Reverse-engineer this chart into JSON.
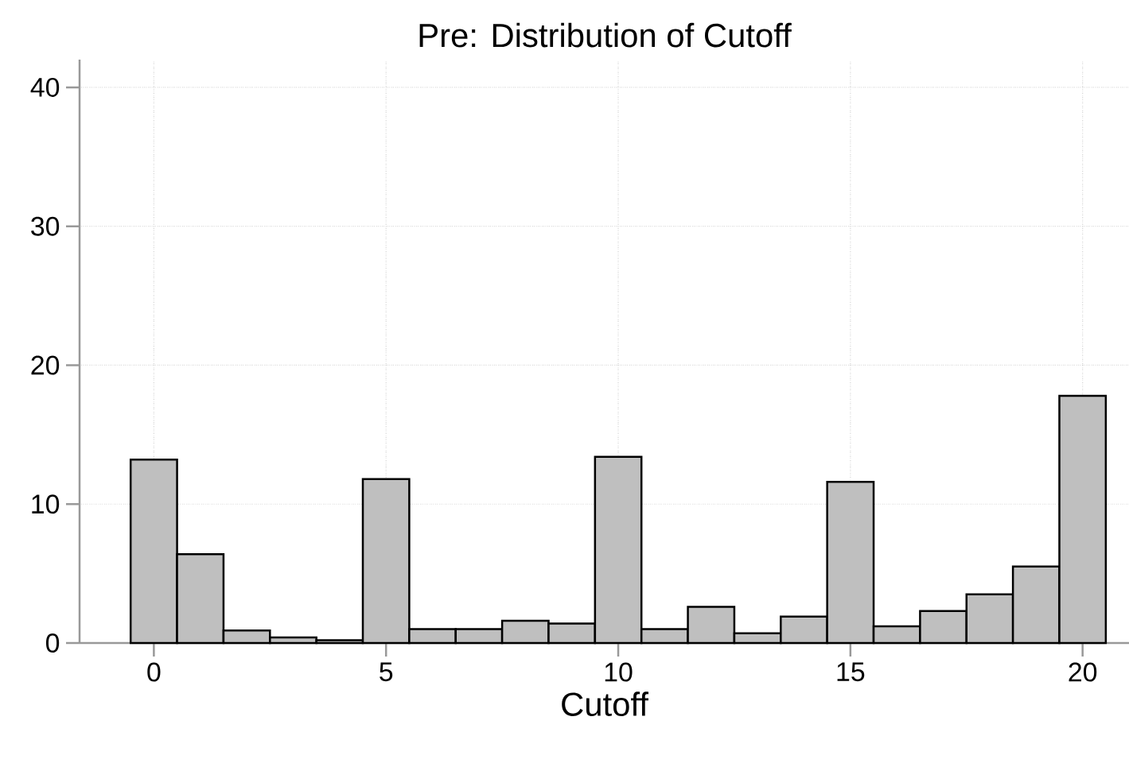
{
  "chart_data": {
    "type": "histogram",
    "title": "Pre: Distribution of Cutoff",
    "xlabel": "Cutoff",
    "bins": [
      -0.5,
      0.5,
      1.5,
      2.5,
      3.5,
      4.5,
      5.5,
      6.5,
      7.5,
      8.5,
      9.5,
      10.5,
      11.5,
      12.5,
      13.5,
      14.5,
      15.5,
      16.5,
      17.5,
      18.5,
      19.5,
      20.5
    ],
    "values": [
      13.2,
      6.4,
      0.9,
      0.4,
      0.2,
      11.8,
      1.0,
      1.0,
      1.6,
      1.4,
      13.4,
      1.0,
      2.6,
      0.7,
      1.9,
      11.6,
      1.2,
      2.3,
      3.5,
      5.5,
      17.8
    ],
    "color": "#bfbfbf",
    "xlim": [
      -1.6,
      21
    ],
    "ylim": [
      0,
      42
    ],
    "xticks": [
      0,
      5,
      10,
      15,
      20
    ],
    "yticks": [
      0,
      10,
      20,
      30,
      40
    ],
    "grid": true
  }
}
